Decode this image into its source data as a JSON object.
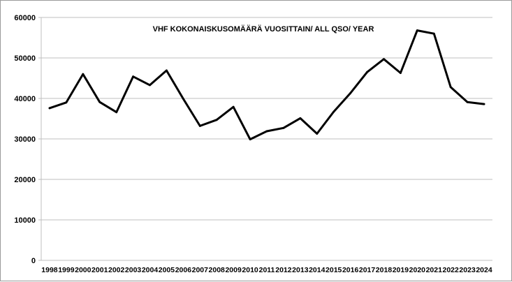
{
  "chart_data": {
    "type": "line",
    "title": "VHF KOKONAISKUSOMÄÄRÄ VUOSITTAIN/ ALL QSO/ YEAR",
    "xlabel": "",
    "ylabel": "",
    "ylim": [
      0,
      60000
    ],
    "yticks": [
      "0",
      "10000",
      "20000",
      "30000",
      "40000",
      "50000",
      "60000"
    ],
    "grid": true,
    "legend": "none",
    "line_color": "#000000",
    "grid_color": "#bfbfbf",
    "x": [
      "1998",
      "1999",
      "2000",
      "2001",
      "2002",
      "2003",
      "2004",
      "2005",
      "2006",
      "2007",
      "2008",
      "2009",
      "2010",
      "2011",
      "2012",
      "2013",
      "2014",
      "2015",
      "2016",
      "2017",
      "2018",
      "2019",
      "2020",
      "2021",
      "2022",
      "2023",
      "2024"
    ],
    "series": [
      {
        "values": [
          37600,
          39000,
          46000,
          39100,
          36600,
          45400,
          43300,
          46900,
          39900,
          33200,
          34700,
          37900,
          29900,
          31900,
          32700,
          35100,
          31300,
          36700,
          41300,
          46500,
          49700,
          46300,
          56800,
          56000,
          42800,
          39100,
          38600
        ]
      }
    ]
  }
}
